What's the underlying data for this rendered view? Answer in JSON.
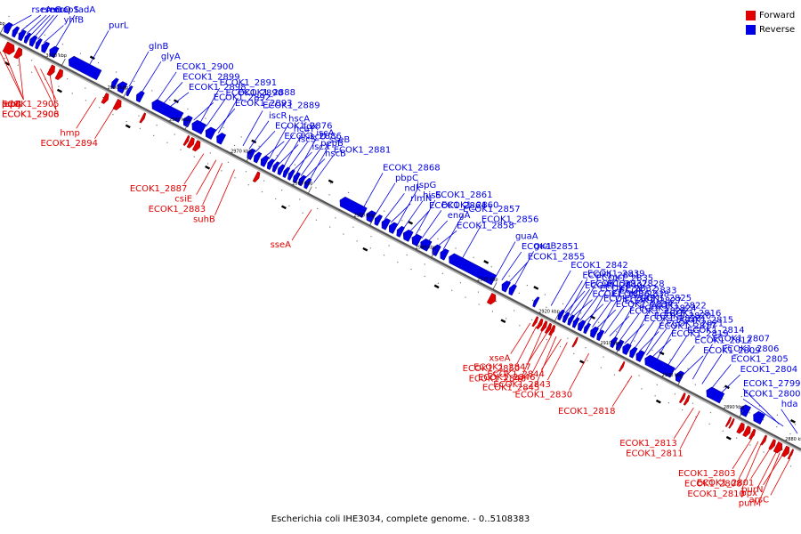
{
  "colors": {
    "forward": "#e00000",
    "reverse": "#0000e6",
    "axis": "#555555"
  },
  "legend": [
    {
      "label": "Forward",
      "color": "#e00000"
    },
    {
      "label": "Reverse",
      "color": "#0000e6"
    }
  ],
  "caption": "Escherichia coli IHE3034, complete genome. - 0..5108383",
  "scale": {
    "kbp_start": 3010,
    "kbp_end": 2880,
    "ticks": [
      "3010 kbp",
      "3000 kbp",
      "2990 kbp",
      "2980 kbp",
      "2970 kbp",
      "2960 kbp",
      "2950 kbp",
      "2940 kbp",
      "2930 kbp",
      "2920 kbp",
      "2910 kbp",
      "2900 kbp",
      "2890 kbp",
      "2880 kbp"
    ]
  },
  "reverse_labels": [
    {
      "name": "rseA",
      "kbp": 3009.0
    },
    {
      "name": "rseC",
      "kbp": 3007.5
    },
    {
      "name": "rnc",
      "kbp": 3006.6
    },
    {
      "name": "recO",
      "kbp": 3006.0
    },
    {
      "name": "era",
      "kbp": 3005.4
    },
    {
      "name": "acpS",
      "kbp": 3004.8
    },
    {
      "name": "yhfB",
      "kbp": 3003.8
    },
    {
      "name": "tadA",
      "kbp": 3002.0
    },
    {
      "name": "purL",
      "kbp": 2996.5
    },
    {
      "name": "glnB",
      "kbp": 2990.0
    },
    {
      "name": "glyA",
      "kbp": 2988.0
    },
    {
      "name": "ECOK1_2900",
      "kbp": 2985.5
    },
    {
      "name": "ECOK1_2899",
      "kbp": 2984.5
    },
    {
      "name": "ECOK1_2898",
      "kbp": 2983.5
    },
    {
      "name": "ECOK1_2893",
      "kbp": 2976.0
    },
    {
      "name": "ECOK1_2892",
      "kbp": 2979.5
    },
    {
      "name": "ECOK1_2891",
      "kbp": 2978.5
    },
    {
      "name": "ECOK1_2890",
      "kbp": 2977.5
    },
    {
      "name": "ECOK1_2888",
      "kbp": 2975.5
    },
    {
      "name": "ECOK1_2889",
      "kbp": 2971.5
    },
    {
      "name": "iscR",
      "kbp": 2970.5
    },
    {
      "name": "ECOK1_2876",
      "kbp": 2969.5
    },
    {
      "name": "ECOK1_2886",
      "kbp": 2968.0
    },
    {
      "name": "hscA",
      "kbp": 2967.3
    },
    {
      "name": "hcaT",
      "kbp": 2966.5
    },
    {
      "name": "iscS",
      "kbp": 2965.7
    },
    {
      "name": "fdx",
      "kbp": 2964.9
    },
    {
      "name": "iscU",
      "kbp": 2964.2
    },
    {
      "name": "iscX",
      "kbp": 2963.5
    },
    {
      "name": "iscA",
      "kbp": 2962.8
    },
    {
      "name": "pepB",
      "kbp": 2962.1
    },
    {
      "name": "hscB",
      "kbp": 2961.4
    },
    {
      "name": "sseB",
      "kbp": 2960.7
    },
    {
      "name": "ECOK1_2881",
      "kbp": 2960.0
    },
    {
      "name": "ECOK1_2868",
      "kbp": 2952.0
    },
    {
      "name": "pbpC",
      "kbp": 2950.0
    },
    {
      "name": "ndk",
      "kbp": 2948.5
    },
    {
      "name": "rlmN",
      "kbp": 2947.5
    },
    {
      "name": "ispG",
      "kbp": 2946.5
    },
    {
      "name": "hisS",
      "kbp": 2945.5
    },
    {
      "name": "ECOK1_2864",
      "kbp": 2944.5
    },
    {
      "name": "ECOK1_2861",
      "kbp": 2943.5
    },
    {
      "name": "ECOK1_2860",
      "kbp": 2942.5
    },
    {
      "name": "engA",
      "kbp": 2941.5
    },
    {
      "name": "ECOK1_2858",
      "kbp": 2940.0
    },
    {
      "name": "ECOK1_2857",
      "kbp": 2939.0
    },
    {
      "name": "ECOK1_2856",
      "kbp": 2936.0
    },
    {
      "name": "guaA",
      "kbp": 2930.5
    },
    {
      "name": "ECOK1_2851",
      "kbp": 2929.5
    },
    {
      "name": "ECOK1_2855",
      "kbp": 2928.5
    },
    {
      "name": "guaB",
      "kbp": 2927.5
    },
    {
      "name": "ECOK1_2842",
      "kbp": 2921.5
    },
    {
      "name": "ECOK1_2841",
      "kbp": 2919.6
    },
    {
      "name": "ECOK1_2840",
      "kbp": 2919.2
    },
    {
      "name": "ECOK1_2839",
      "kbp": 2918.8
    },
    {
      "name": "ECOK1_2837",
      "kbp": 2918.4
    },
    {
      "name": "ECOK1_2836",
      "kbp": 2918.0
    },
    {
      "name": "ECOK1_2835",
      "kbp": 2917.4
    },
    {
      "name": "ECOK1_2832",
      "kbp": 2916.8
    },
    {
      "name": "ECOK1_2831",
      "kbp": 2916.2
    },
    {
      "name": "ECOK1_2828",
      "kbp": 2915.6
    },
    {
      "name": "ECOK1_2838",
      "kbp": 2914.8
    },
    {
      "name": "ECOK1_2834",
      "kbp": 2914.2
    },
    {
      "name": "ECOK1_2833",
      "kbp": 2913.6
    },
    {
      "name": "ECOK1_2827",
      "kbp": 2912.8
    },
    {
      "name": "ECOK1_2826",
      "kbp": 2912.0
    },
    {
      "name": "ECOK1_2825",
      "kbp": 2911.2
    },
    {
      "name": "ECOK1_2824",
      "kbp": 2910.4
    },
    {
      "name": "ECOK1_2823",
      "kbp": 2909.6
    },
    {
      "name": "ECOK1_2822",
      "kbp": 2908.8
    },
    {
      "name": "ECOK1_2820",
      "kbp": 2908.0
    },
    {
      "name": "ECOK1_2817",
      "kbp": 2907.2
    },
    {
      "name": "ECOK1_2816",
      "kbp": 2906.4
    },
    {
      "name": "ECOK1_2821",
      "kbp": 2906.0
    },
    {
      "name": "ECOK1_2819",
      "kbp": 2905.2
    },
    {
      "name": "ECOK1_2815",
      "kbp": 2904.4
    },
    {
      "name": "ECOK1_2814",
      "kbp": 2902.6
    },
    {
      "name": "ECOK1_2812",
      "kbp": 2901.4
    },
    {
      "name": "ECOK1_2809",
      "kbp": 2900.0
    },
    {
      "name": "ECOK1_2807",
      "kbp": 2898.5
    },
    {
      "name": "ECOK1_2806",
      "kbp": 2897.0
    },
    {
      "name": "ECOK1_2805",
      "kbp": 2895.5
    },
    {
      "name": "ECOK1_2804",
      "kbp": 2894.0
    },
    {
      "name": "ECOK1_2799",
      "kbp": 2884.5
    },
    {
      "name": "ECOK1_2800",
      "kbp": 2883.8
    },
    {
      "name": "hda",
      "kbp": 2881.5
    }
  ],
  "forward_labels": [
    {
      "name": "lepA",
      "kbp": 3009.5
    },
    {
      "name": "lepB",
      "kbp": 3008.5
    },
    {
      "name": "pdxJ",
      "kbp": 3006.0
    },
    {
      "name": "ECOK1_2906",
      "kbp": 3003.5
    },
    {
      "name": "ECOK1_2905",
      "kbp": 3002.5
    },
    {
      "name": "ECOK1_2903",
      "kbp": 3001.0
    },
    {
      "name": "hmp",
      "kbp": 2993.5
    },
    {
      "name": "ECOK1_2894",
      "kbp": 2990.5
    },
    {
      "name": "ECOK1_2887",
      "kbp": 2976.0
    },
    {
      "name": "csiE",
      "kbp": 2974.0
    },
    {
      "name": "ECOK1_2883",
      "kbp": 2973.0
    },
    {
      "name": "suhB",
      "kbp": 2971.0
    },
    {
      "name": "sseA",
      "kbp": 2958.5
    },
    {
      "name": "xseA",
      "kbp": 2923.0
    },
    {
      "name": "ECOK1_2850",
      "kbp": 2922.0
    },
    {
      "name": "ECOK1_2848",
      "kbp": 2921.0
    },
    {
      "name": "ECOK1_2847",
      "kbp": 2920.2
    },
    {
      "name": "ECOK1_2846",
      "kbp": 2919.5
    },
    {
      "name": "ECOK1_2845",
      "kbp": 2918.8
    },
    {
      "name": "ECOK1_2844",
      "kbp": 2918.0
    },
    {
      "name": "ECOK1_2843",
      "kbp": 2917.0
    },
    {
      "name": "ECOK1_2830",
      "kbp": 2913.5
    },
    {
      "name": "ECOK1_2818",
      "kbp": 2906.5
    },
    {
      "name": "ECOK1_2813",
      "kbp": 2896.5
    },
    {
      "name": "ECOK1_2811",
      "kbp": 2895.5
    },
    {
      "name": "ECOK1_2803",
      "kbp": 2887.0
    },
    {
      "name": "ECOK1_2808",
      "kbp": 2886.0
    },
    {
      "name": "ECOK1_2810",
      "kbp": 2885.5
    },
    {
      "name": "ECOK1_2801",
      "kbp": 2884.0
    },
    {
      "name": "ppx",
      "kbp": 2883.0
    },
    {
      "name": "purM",
      "kbp": 2882.5
    },
    {
      "name": "purN",
      "kbp": 2882.0
    },
    {
      "name": "arsC",
      "kbp": 2880.8
    }
  ],
  "reverse_genes": [
    [
      3010.0,
      3009.0
    ],
    [
      3008.6,
      3007.9
    ],
    [
      3007.6,
      3006.8
    ],
    [
      3006.6,
      3006.0
    ],
    [
      3005.8,
      3005.0
    ],
    [
      3004.8,
      3004.2
    ],
    [
      3003.9,
      3003.0
    ],
    [
      3002.6,
      3001.5
    ],
    [
      2999.5,
      2994.6
    ],
    [
      2992.5,
      2991.8
    ],
    [
      2991.6,
      2990.4
    ],
    [
      2990.0,
      2989.5
    ],
    [
      2988.5,
      2987.6
    ],
    [
      2986.0,
      2981.3
    ],
    [
      2980.9,
      2979.8
    ],
    [
      2979.5,
      2977.6
    ],
    [
      2977.3,
      2976.0
    ],
    [
      2975.5,
      2974.4
    ],
    [
      2970.5,
      2969.6
    ],
    [
      2969.4,
      2968.6
    ],
    [
      2968.3,
      2967.4
    ],
    [
      2967.2,
      2966.5
    ],
    [
      2966.3,
      2965.7
    ],
    [
      2965.5,
      2964.8
    ],
    [
      2964.6,
      2964.0
    ],
    [
      2963.8,
      2963.2
    ],
    [
      2963.0,
      2962.3
    ],
    [
      2962.1,
      2961.4
    ],
    [
      2961.2,
      2960.5
    ],
    [
      2955.5,
      2951.5
    ],
    [
      2951.2,
      2950.0
    ],
    [
      2949.8,
      2949.0
    ],
    [
      2948.7,
      2947.7
    ],
    [
      2947.5,
      2946.5
    ],
    [
      2946.2,
      2945.4
    ],
    [
      2945.2,
      2944.0
    ],
    [
      2943.8,
      2942.6
    ],
    [
      2942.4,
      2941.0
    ],
    [
      2940.5,
      2939.5
    ],
    [
      2939.2,
      2938.2
    ],
    [
      2937.8,
      2930.5
    ],
    [
      2929.2,
      2928.2
    ],
    [
      2928.0,
      2927.2
    ],
    [
      2924.0,
      2923.5
    ],
    [
      2920.0,
      2919.4
    ],
    [
      2919.2,
      2918.6
    ],
    [
      2918.4,
      2917.8
    ],
    [
      2917.6,
      2917.0
    ],
    [
      2916.8,
      2916.0
    ],
    [
      2915.8,
      2915.2
    ],
    [
      2914.8,
      2913.9
    ],
    [
      2913.7,
      2913.0
    ],
    [
      2911.5,
      2910.8
    ],
    [
      2910.6,
      2909.8
    ],
    [
      2909.6,
      2908.6
    ],
    [
      2908.4,
      2907.6
    ],
    [
      2907.4,
      2906.4
    ],
    [
      2906.0,
      2901.5
    ],
    [
      2901.0,
      2900.0
    ],
    [
      2896.0,
      2893.5
    ],
    [
      2890.5,
      2889.2
    ],
    [
      2888.4,
      2886.9
    ]
  ],
  "forward_genes": [
    [
      3008.5,
      3007.0
    ],
    [
      3006.7,
      3005.8
    ],
    [
      3001.3,
      3000.5
    ],
    [
      3000.0,
      2999.2
    ],
    [
      2992.5,
      2991.8
    ],
    [
      2990.6,
      2989.7
    ],
    [
      2986.3,
      2985.9
    ],
    [
      2979.2,
      2978.8
    ],
    [
      2978.6,
      2977.9
    ],
    [
      2977.7,
      2976.9
    ],
    [
      2967.9,
      2967.3
    ],
    [
      2929.9,
      2928.9
    ],
    [
      2922.6,
      2922.2
    ],
    [
      2921.9,
      2921.4
    ],
    [
      2921.2,
      2920.7
    ],
    [
      2920.5,
      2920.0
    ],
    [
      2919.9,
      2919.4
    ],
    [
      2916.1,
      2915.8
    ],
    [
      2908.5,
      2908.2
    ],
    [
      2898.7,
      2898.3
    ],
    [
      2898.0,
      2897.6
    ],
    [
      2891.2,
      2890.9
    ],
    [
      2890.7,
      2890.4
    ],
    [
      2889.4,
      2888.6
    ],
    [
      2888.4,
      2887.6
    ],
    [
      2887.4,
      2886.9
    ],
    [
      2885.5,
      2885.1
    ],
    [
      2884.2,
      2883.6
    ],
    [
      2883.4,
      2882.4
    ],
    [
      2882.1,
      2881.3
    ],
    [
      2881.1,
      2880.8
    ]
  ],
  "tracks": {
    "top": [
      2996.6,
      2983.0,
      2970.4,
      2957.9,
      2945.0,
      2932.7,
      2924.6,
      2915.4,
      2904.2,
      2893.6,
      2882.9
    ],
    "bottom": [
      3007.1,
      2998.6,
      2987.5,
      2974.6,
      2962.2,
      2949.0,
      2937.4,
      2926.6,
      2913.8,
      2901.4,
      2890.0
    ]
  }
}
